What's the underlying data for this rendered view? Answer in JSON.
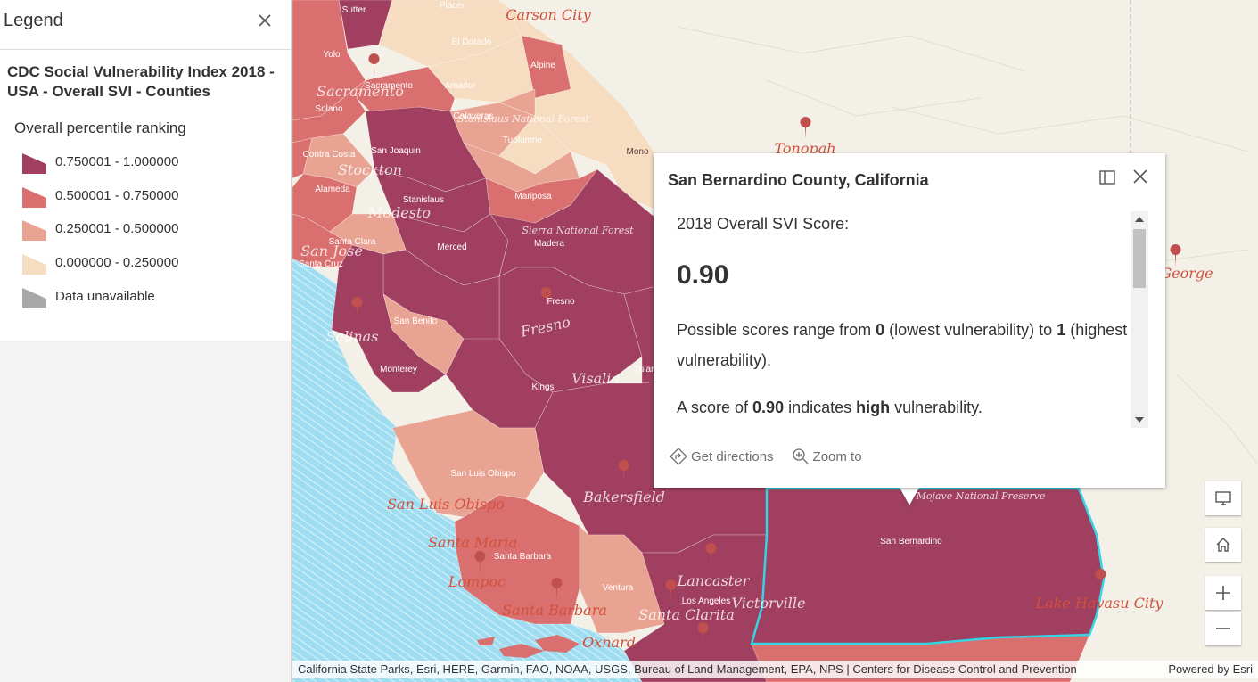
{
  "legend": {
    "title": "Legend",
    "layer_title": "CDC Social Vulnerability Index 2018 - USA - Overall SVI - Counties",
    "field_title": "Overall percentile ranking",
    "items": [
      {
        "label": "0.750001 - 1.000000",
        "color": "#a03f5f"
      },
      {
        "label": "0.500001 - 0.750000",
        "color": "#d96f6e"
      },
      {
        "label": "0.250001 - 0.500000",
        "color": "#e9a393"
      },
      {
        "label": "0.000000 - 0.250000",
        "color": "#f6dcc0"
      },
      {
        "label": "Data unavailable",
        "color": "#a8a8a8"
      }
    ]
  },
  "popup": {
    "title": "San Bernardino County, California",
    "score_label": "2018 Overall SVI Score:",
    "score_value": "0.90",
    "range_prefix": "Possible scores range from ",
    "range_low": "0",
    "range_mid": " (lowest vulnerability) to ",
    "range_high": "1",
    "range_suffix": " (highest vulnerability).",
    "indicates_prefix": "A score of ",
    "indicates_score": "0.90",
    "indicates_mid": " indicates ",
    "indicates_level": "high",
    "indicates_suffix": " vulnerability.",
    "actions": {
      "directions": "Get directions",
      "zoom": "Zoom to"
    }
  },
  "map": {
    "county_labels": [
      "Sutter",
      "Placer",
      "Yolo",
      "El Dorado",
      "Alpine",
      "Sacramento",
      "Amador",
      "Solano",
      "Calaveras",
      "San Joaquin",
      "Tuolumne",
      "Contra Costa",
      "Mono",
      "Alameda",
      "Stanislaus",
      "Mariposa",
      "Santa Clara",
      "Merced",
      "Madera",
      "Santa Cruz",
      "Fresno",
      "San Benito",
      "Monterey",
      "Tulare",
      "Kings",
      "San Luis Obispo",
      "Santa Barbara",
      "Ventura",
      "Los Angeles",
      "San Bernardino"
    ],
    "city_labels": [
      "Carson City",
      "Sacramento",
      "Stockton",
      "Modesto",
      "San Jose",
      "Salinas",
      "Fresno",
      "Visalia",
      "Tonopah",
      "George",
      "Bakersfield",
      "San Luis Obispo",
      "Santa Maria",
      "Lompoc",
      "Santa Barbara",
      "Oxnard",
      "Lancaster",
      "Santa Clarita",
      "Victorville",
      "Lake Havasu City",
      "Mojave National Preserve",
      "Sierra National Forest",
      "Stanislaus National Forest"
    ],
    "attribution": "California State Parks, Esri, HERE, Garmin, FAO, NOAA, USGS, Bureau of Land Management, EPA, NPS | Centers for Disease Control and Prevention",
    "powered_by": "Powered by Esri"
  },
  "colors": {
    "very_high": "#a03f5f",
    "high": "#d96f6e",
    "medium": "#e9a393",
    "low": "#f6dcc0",
    "highlight": "#35d4e6",
    "ocean": "#9edcf0"
  },
  "icons": [
    "close-icon",
    "dock-icon",
    "directions-icon",
    "zoom-icon",
    "monitor-icon",
    "home-icon",
    "plus-icon",
    "minus-icon"
  ]
}
